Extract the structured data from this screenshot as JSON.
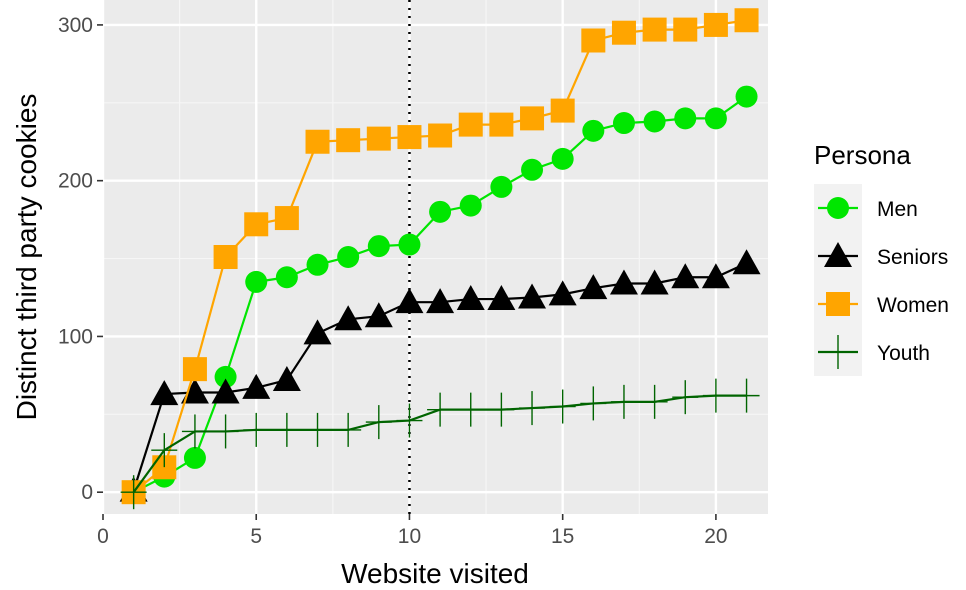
{
  "chart_data": {
    "type": "line",
    "xlabel": "Website visited",
    "ylabel": "Distinct third party cookies",
    "xlim": [
      0,
      21.7
    ],
    "ylim": [
      -14,
      316
    ],
    "x_ticks": [
      0,
      5,
      10,
      15,
      20
    ],
    "y_ticks": [
      0,
      100,
      200,
      300
    ],
    "vline_x": 10,
    "grid": true,
    "legend_title": "Persona",
    "legend_position": "right",
    "x": [
      1,
      2,
      3,
      4,
      5,
      6,
      7,
      8,
      9,
      10,
      11,
      12,
      13,
      14,
      15,
      16,
      17,
      18,
      19,
      20,
      21
    ],
    "series": [
      {
        "name": "Men",
        "color": "#00e600",
        "marker": "circle",
        "values": [
          0,
          10,
          22,
          74,
          135,
          138,
          146,
          151,
          158,
          159,
          180,
          184,
          196,
          207,
          214,
          232,
          237,
          238,
          240,
          240,
          254
        ]
      },
      {
        "name": "Seniors",
        "color": "#000000",
        "marker": "triangle",
        "values": [
          1,
          63,
          64,
          64,
          67,
          72,
          102,
          111,
          113,
          122,
          122,
          124,
          124,
          125,
          127,
          131,
          134,
          134,
          138,
          138,
          147
        ]
      },
      {
        "name": "Women",
        "color": "#ffa500",
        "marker": "square",
        "values": [
          0,
          16,
          79,
          151,
          172,
          176,
          225,
          226,
          227,
          228,
          229,
          236,
          236,
          240,
          245,
          290,
          295,
          297,
          297,
          300,
          303
        ]
      },
      {
        "name": "Youth",
        "color": "#006400",
        "marker": "plus",
        "values": [
          0,
          27,
          39,
          39,
          40,
          40,
          40,
          40,
          45,
          46,
          53,
          53,
          53,
          54,
          55,
          57,
          58,
          58,
          61,
          62,
          62
        ]
      }
    ]
  }
}
